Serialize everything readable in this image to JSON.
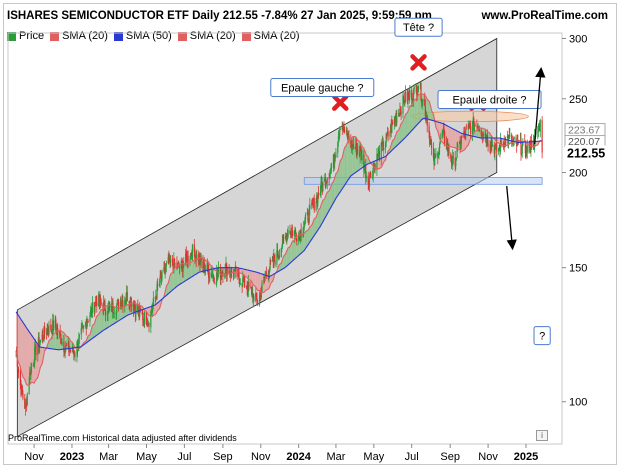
{
  "header": {
    "title": "ISHARES SEMICONDUCTOR ETF Daily 212.55 -7.84% 27 Jan 2025, 9:59:59 pm",
    "brand": "www.ProRealTime.com"
  },
  "legend": [
    {
      "label": "Price",
      "color": "#2a9d3a"
    },
    {
      "label": "SMA (20)",
      "color": "#e06060"
    },
    {
      "label": "SMA (50)",
      "color": "#2a3ad0"
    },
    {
      "label": "SMA (20)",
      "color": "#e06060"
    },
    {
      "label": "SMA (20)",
      "color": "#e06060"
    }
  ],
  "footer_note": "ProRealTime.com  Historical data adjusted after dividends",
  "info_icon": "i",
  "colors": {
    "up": "#2a9d3a",
    "down": "#e03030",
    "sma20": "#e06060",
    "sma50": "#2a3ad0",
    "channel_fill": "#cfcfcf",
    "fill_bull": "#7fbf7f",
    "fill_bear": "#e89a9a",
    "zone_blue": "#b8cdf2",
    "zone_orange": "#f6c9a8",
    "marker": "#e02020"
  },
  "chart_data": {
    "type": "candlestick",
    "y_scale": "log",
    "ylim": [
      88,
      305
    ],
    "y_ticks": [
      100,
      150,
      200,
      250,
      300
    ],
    "x_ticks": [
      "Nov",
      "2023",
      "Mar",
      "May",
      "Jul",
      "Sep",
      "Nov",
      "2024",
      "Mar",
      "May",
      "Jul",
      "Sep",
      "Nov",
      "2025"
    ],
    "x_ticks_bold": [
      "2023",
      "2024",
      "2025"
    ],
    "last_price": "212.55",
    "right_labels": [
      "220.07",
      "223.67"
    ],
    "price_path": [
      [
        "2022-10-01",
        120
      ],
      [
        "2022-10-10",
        105
      ],
      [
        "2022-10-18",
        98
      ],
      [
        "2022-10-26",
        110
      ],
      [
        "2022-11-05",
        118
      ],
      [
        "2022-11-20",
        124
      ],
      [
        "2022-12-05",
        126
      ],
      [
        "2022-12-20",
        118
      ],
      [
        "2023-01-05",
        116
      ],
      [
        "2023-01-25",
        128
      ],
      [
        "2023-02-10",
        136
      ],
      [
        "2023-02-28",
        132
      ],
      [
        "2023-03-15",
        134
      ],
      [
        "2023-04-01",
        138
      ],
      [
        "2023-04-20",
        130
      ],
      [
        "2023-05-05",
        128
      ],
      [
        "2023-05-20",
        142
      ],
      [
        "2023-06-05",
        152
      ],
      [
        "2023-06-25",
        150
      ],
      [
        "2023-07-15",
        158
      ],
      [
        "2023-08-01",
        150
      ],
      [
        "2023-08-20",
        146
      ],
      [
        "2023-09-05",
        150
      ],
      [
        "2023-09-25",
        146
      ],
      [
        "2023-10-10",
        142
      ],
      [
        "2023-10-27",
        135
      ],
      [
        "2023-11-10",
        148
      ],
      [
        "2023-11-28",
        156
      ],
      [
        "2023-12-15",
        168
      ],
      [
        "2024-01-02",
        166
      ],
      [
        "2024-01-20",
        178
      ],
      [
        "2024-02-05",
        190
      ],
      [
        "2024-02-25",
        205
      ],
      [
        "2024-03-08",
        232
      ],
      [
        "2024-03-25",
        218
      ],
      [
        "2024-04-10",
        212
      ],
      [
        "2024-04-22",
        195
      ],
      [
        "2024-05-05",
        208
      ],
      [
        "2024-05-20",
        220
      ],
      [
        "2024-06-05",
        236
      ],
      [
        "2024-06-20",
        250
      ],
      [
        "2024-07-05",
        255
      ],
      [
        "2024-07-12",
        262
      ],
      [
        "2024-07-25",
        238
      ],
      [
        "2024-08-05",
        205
      ],
      [
        "2024-08-20",
        225
      ],
      [
        "2024-09-06",
        205
      ],
      [
        "2024-09-20",
        222
      ],
      [
        "2024-10-05",
        230
      ],
      [
        "2024-10-15",
        232
      ],
      [
        "2024-10-30",
        222
      ],
      [
        "2024-11-15",
        214
      ],
      [
        "2024-12-01",
        222
      ],
      [
        "2024-12-15",
        218
      ],
      [
        "2025-01-02",
        214
      ],
      [
        "2025-01-15",
        220
      ],
      [
        "2025-01-24",
        232
      ],
      [
        "2025-01-27",
        212.55
      ]
    ],
    "sma50_path": [
      [
        "2022-10-01",
        132
      ],
      [
        "2022-10-20",
        125
      ],
      [
        "2022-11-10",
        118
      ],
      [
        "2022-12-10",
        117
      ],
      [
        "2023-01-15",
        118
      ],
      [
        "2023-02-20",
        124
      ],
      [
        "2023-04-01",
        130
      ],
      [
        "2023-05-15",
        134
      ],
      [
        "2023-06-20",
        142
      ],
      [
        "2023-07-25",
        148
      ],
      [
        "2023-08-25",
        150
      ],
      [
        "2023-09-25",
        150
      ],
      [
        "2023-10-25",
        148
      ],
      [
        "2023-11-15",
        146
      ],
      [
        "2023-12-10",
        150
      ],
      [
        "2024-01-10",
        158
      ],
      [
        "2024-02-05",
        170
      ],
      [
        "2024-03-01",
        185
      ],
      [
        "2024-03-25",
        198
      ],
      [
        "2024-04-20",
        205
      ],
      [
        "2024-05-20",
        210
      ],
      [
        "2024-06-20",
        222
      ],
      [
        "2024-07-20",
        236
      ],
      [
        "2024-08-20",
        232
      ],
      [
        "2024-09-20",
        225
      ],
      [
        "2024-10-20",
        222
      ],
      [
        "2024-11-20",
        222
      ],
      [
        "2024-12-20",
        219
      ],
      [
        "2025-01-27",
        220
      ]
    ],
    "channel": {
      "lower": [
        [
          "2022-10-05",
          90
        ],
        [
          "2024-11-15",
          200
        ]
      ],
      "upper": [
        [
          "2022-10-05",
          132
        ],
        [
          "2024-11-15",
          300
        ]
      ]
    },
    "zones": [
      {
        "type": "support",
        "start": "2024-01-10",
        "end": "2025-01-27",
        "low": 193,
        "high": 197
      },
      {
        "type": "neckline",
        "start": "2024-07-01",
        "end": "2025-01-05",
        "low": 234,
        "high": 240
      }
    ],
    "annotations": [
      {
        "text": "Epaule gauche ?",
        "date": "2024-03-08",
        "price": 232
      },
      {
        "text": "Tête ?",
        "date": "2024-07-12",
        "price": 262
      },
      {
        "text": "Epaule droite ?",
        "date": "2024-10-15",
        "price": 232
      },
      {
        "text": "?",
        "date": "2025-01-27",
        "price": 150
      }
    ],
    "arrows": [
      {
        "from": [
          "2025-01-15",
          218
        ],
        "to": [
          "2025-01-25",
          272
        ]
      },
      {
        "from": [
          "2024-12-01",
          192
        ],
        "to": [
          "2024-12-10",
          160
        ]
      }
    ]
  }
}
